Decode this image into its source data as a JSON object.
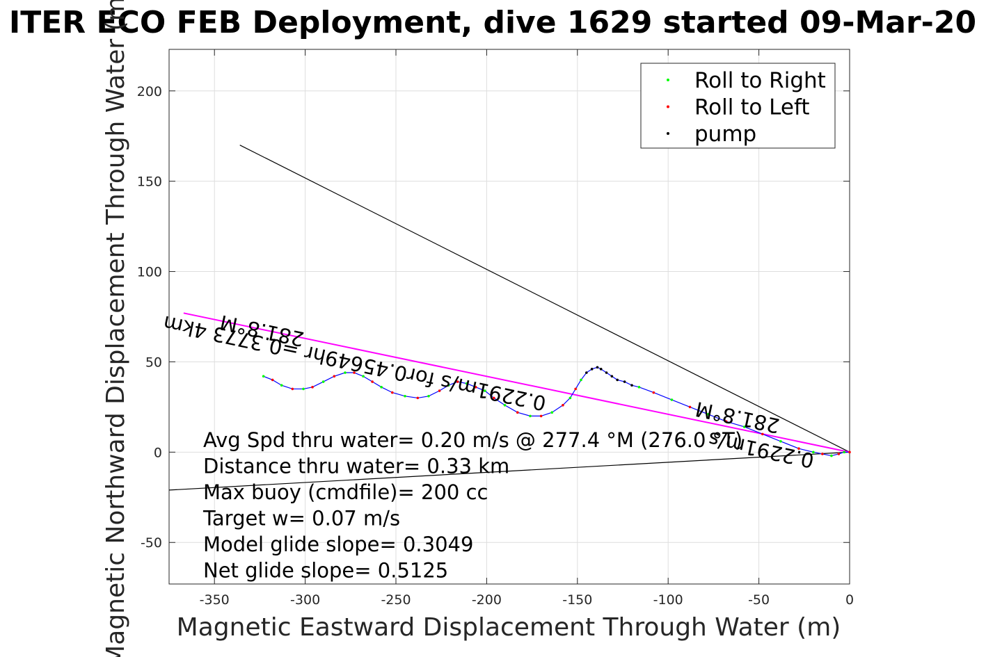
{
  "chart_data": {
    "type": "line",
    "title": "ITER ECO FEB Deployment, dive 1629 started 09-Mar-20",
    "xlabel": "Magnetic Eastward Displacement Through Water (m)",
    "ylabel": "Magnetic Northward Displacement Through Water (m)",
    "xlim": [
      -375,
      0
    ],
    "ylim": [
      -73,
      223
    ],
    "xticks": [
      -350,
      -300,
      -250,
      -200,
      -150,
      -100,
      -50,
      0
    ],
    "yticks": [
      -50,
      0,
      50,
      100,
      150,
      200
    ],
    "grid": true,
    "legend": {
      "placement": "top-right",
      "entries": [
        {
          "label": "Roll to Right",
          "color": "#00ff00"
        },
        {
          "label": "Roll to Left",
          "color": "#ff0000"
        },
        {
          "label": "pump",
          "color": "#000000"
        }
      ]
    },
    "lines": [
      {
        "name": "reference-upper",
        "color": "#000000",
        "x": [
          0,
          -336
        ],
        "y": [
          0,
          170
        ]
      },
      {
        "name": "reference-lower",
        "color": "#000000",
        "x": [
          0,
          -375
        ],
        "y": [
          0,
          -21
        ]
      },
      {
        "name": "heading-track",
        "color": "#ff00ff",
        "x": [
          0,
          -367
        ],
        "y": [
          0,
          77
        ]
      }
    ],
    "track": {
      "color": "#0000ff",
      "x": [
        -323,
        -318,
        -313,
        -307,
        -301,
        -296,
        -290,
        -284,
        -278,
        -273,
        -268,
        -263,
        -258,
        -252,
        -245,
        -238,
        -232,
        -226,
        -221,
        -216,
        -211,
        -206,
        -201,
        -196,
        -190,
        -183,
        -176,
        -170,
        -164,
        -158,
        -154,
        -151,
        -148,
        -145,
        -142,
        -139,
        -137,
        -134,
        -131,
        -128,
        -124,
        -120,
        -116,
        -108,
        -98,
        -88,
        -78,
        -68,
        -58,
        -48,
        -38,
        -28,
        -20,
        -15,
        -10,
        -6,
        -3,
        0
      ],
      "y": [
        42,
        40,
        37,
        35,
        35,
        36,
        39,
        42,
        44,
        44,
        42,
        39,
        36,
        33,
        31,
        30,
        31,
        34,
        37,
        39,
        38,
        36,
        34,
        30,
        26,
        22,
        20,
        20,
        22,
        26,
        30,
        35,
        40,
        44,
        46,
        47,
        46,
        44,
        42,
        40,
        39,
        37,
        36,
        33,
        29,
        25,
        21,
        17,
        14,
        10,
        6,
        2,
        0,
        -1,
        -2,
        -1,
        0,
        0
      ]
    },
    "annotations": [
      {
        "text": "281.8°M",
        "x": -323,
        "y": 71,
        "rotation_deg": 192
      },
      {
        "text": "0.2291m/s for0.45649hr =0.3773 4km",
        "x": -272,
        "y": 53,
        "rotation_deg": 192
      },
      {
        "text": "281.8°M",
        "x": -61,
        "y": 23,
        "rotation_deg": 192
      },
      {
        "text": "0.2291m/s",
        "x": -48,
        "y": 5,
        "rotation_deg": 192
      }
    ],
    "stats": [
      "Avg Spd thru water=  0.20 m/s @ 277.4 °M (276.0 °T)",
      "Distance thru water=  0.33 km",
      "Max buoy (cmdfile)= 200 cc",
      "Target w= 0.07 m/s",
      "Model glide slope= 0.3049",
      "Net glide slope= 0.5125"
    ]
  }
}
